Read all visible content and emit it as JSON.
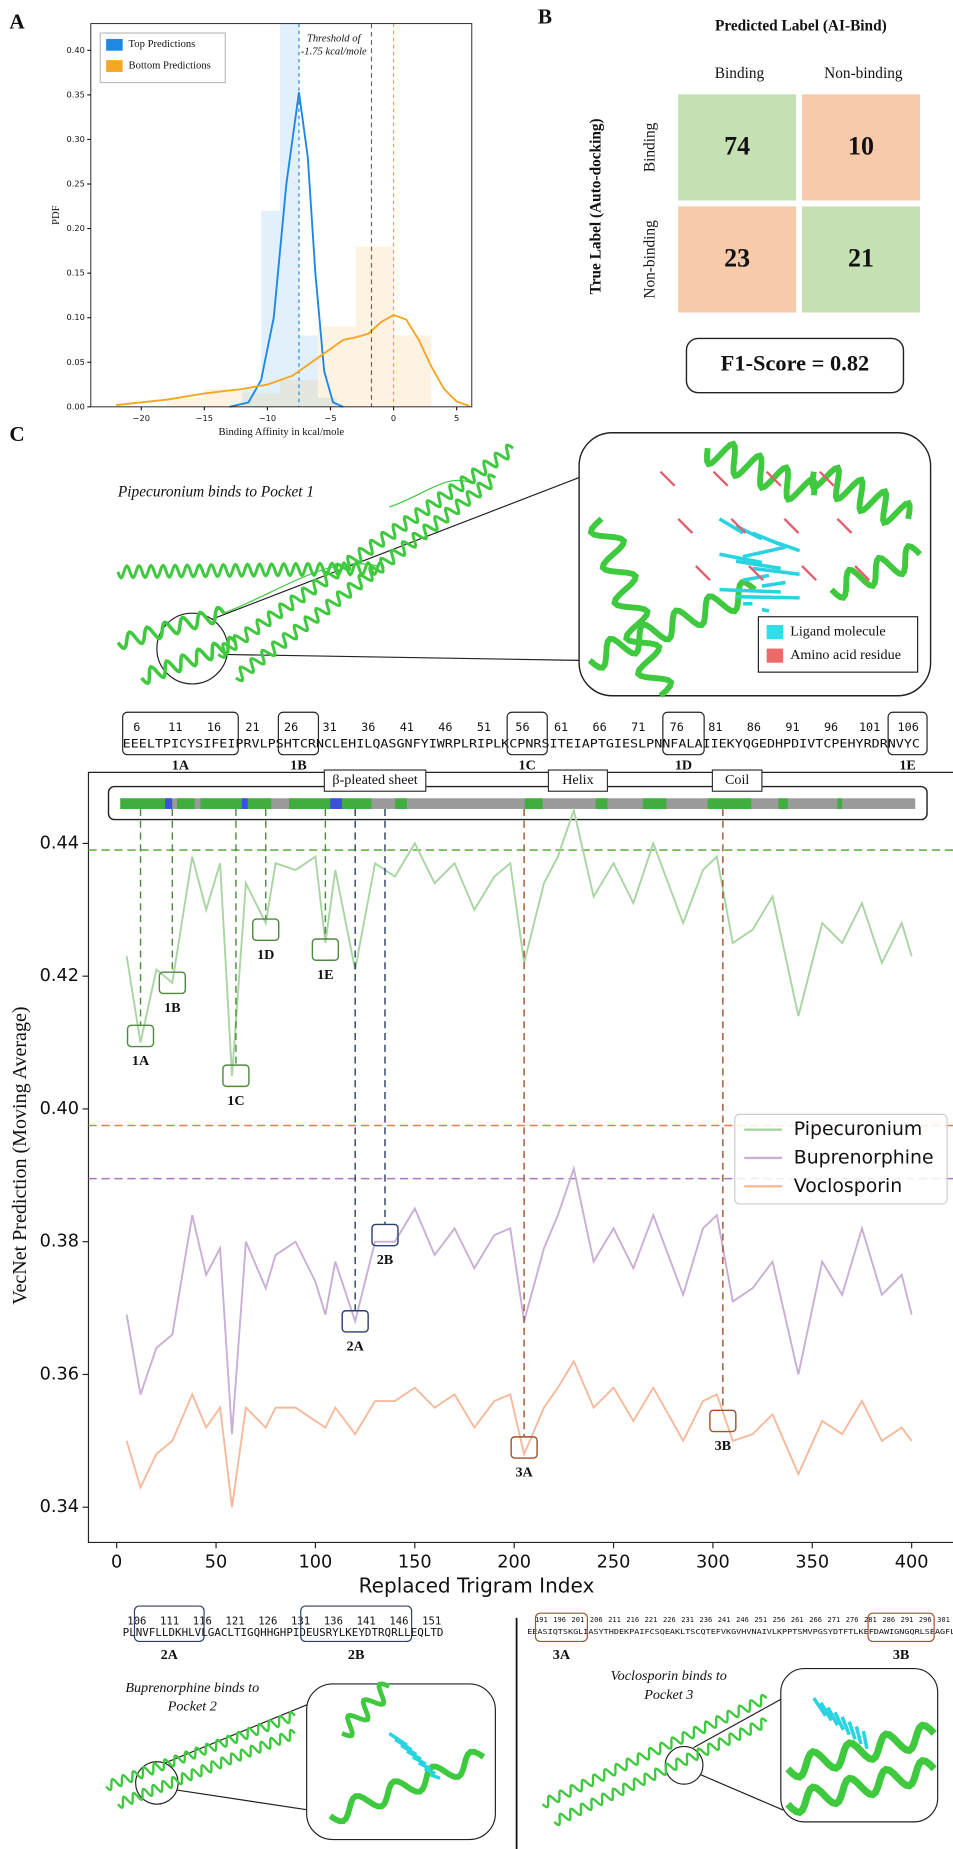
{
  "panel_labels": [
    "A",
    "B",
    "C"
  ],
  "chart_data": [
    {
      "type": "kde",
      "xlabel": "Binding Affinity in kcal/mole",
      "ylabel": "PDF",
      "xlim": [
        -24,
        6.2
      ],
      "ylim": [
        0,
        0.43
      ],
      "xticks": [
        {
          "value": -20,
          "label": "−20"
        },
        {
          "value": -15,
          "label": "−15"
        },
        {
          "value": -10,
          "label": "−10"
        },
        {
          "value": -5,
          "label": "−5"
        },
        0,
        5
      ],
      "yticks": [
        {
          "value": 0,
          "label": "0.00"
        },
        0.05,
        {
          "value": 0.1,
          "label": "0.10"
        },
        0.15,
        {
          "value": 0.2,
          "label": "0.20"
        },
        0.25,
        {
          "value": 0.3,
          "label": "0.30"
        },
        0.35,
        {
          "value": 0.4,
          "label": "0.40"
        }
      ],
      "annotation": [
        "Threshold of",
        "-1.75 kcal/mole"
      ],
      "threshold": -1.75,
      "legend": "upper left",
      "series": [
        {
          "name": "Top Predictions",
          "color": "#1e88e5",
          "mean": -7.5,
          "bins": [
            -12,
            -10.5,
            -9,
            -7.5,
            -6,
            -4.5
          ],
          "values": [
            0.02,
            0.22,
            0.43,
            0.08,
            0.01
          ],
          "kde_x": [
            -13,
            -11.5,
            -10.5,
            -9.5,
            -8.5,
            -7.5,
            -6.8,
            -6.2,
            -5.5,
            -4.8,
            -4
          ],
          "kde_y": [
            0,
            0.005,
            0.03,
            0.1,
            0.25,
            0.353,
            0.28,
            0.15,
            0.04,
            0.005,
            0
          ]
        },
        {
          "name": "Bottom Predictions",
          "color": "#f5a623",
          "mean": 0,
          "bins": [
            -18,
            -15,
            -12,
            -9,
            -6,
            -3,
            0,
            3
          ],
          "values": [
            0.01,
            0.02,
            0.015,
            0.03,
            0.09,
            0.18,
            0.08
          ],
          "kde_x": [
            -22,
            -18,
            -15,
            -12,
            -10,
            -8,
            -6,
            -4,
            -3,
            -2,
            -1,
            0,
            1,
            2,
            3,
            4,
            5,
            6
          ],
          "kde_y": [
            0.002,
            0.008,
            0.015,
            0.02,
            0.025,
            0.035,
            0.055,
            0.075,
            0.078,
            0.082,
            0.095,
            0.103,
            0.098,
            0.075,
            0.045,
            0.02,
            0.006,
            0.001
          ]
        }
      ]
    },
    {
      "type": "heatmap",
      "title": "Predicted Label (AI-Bind)",
      "ylabel": "True Label (Auto-docking)",
      "columns": [
        "Binding",
        "Non-binding"
      ],
      "rows": [
        "Binding",
        "Non-binding"
      ],
      "values": [
        [
          74,
          10
        ],
        [
          23,
          21
        ]
      ],
      "cell_colors": [
        [
          "#c5e0b3",
          "#f7caac"
        ],
        [
          "#f7caac",
          "#c5e0b3"
        ]
      ],
      "score": "F1-Score = 0.82"
    },
    {
      "type": "line",
      "xlabel": "Replaced Trigram Index",
      "ylabel": "VecNet Prediction (Moving Average)",
      "xlim": [
        -14.2,
        420.8
      ],
      "ylim": [
        0.3347,
        0.4507
      ],
      "xticks": [
        0,
        50,
        100,
        150,
        200,
        250,
        300,
        350,
        400
      ],
      "yticks": [
        0.34,
        0.36,
        0.38,
        {
          "value": 0.4,
          "label": "0.40"
        },
        0.42,
        0.44
      ],
      "legend": "center right",
      "structure_labels": [
        {
          "label": "β-pleated sheet",
          "color": "#3344cc"
        },
        {
          "label": "Helix",
          "color": "#888888"
        },
        {
          "label": "Coil",
          "color": "#3a9a3a"
        }
      ],
      "x": [
        5,
        12,
        20,
        28,
        38,
        45,
        52,
        58,
        65,
        75,
        80,
        90,
        100,
        105,
        110,
        120,
        130,
        140,
        150,
        160,
        170,
        180,
        190,
        198,
        205,
        215,
        222,
        230,
        240,
        250,
        260,
        270,
        285,
        295,
        302,
        310,
        320,
        330,
        343,
        355,
        365,
        375,
        385,
        395,
        400
      ],
      "series": [
        {
          "name": "Pipecuronium",
          "color": "#a8d5a2",
          "threshold": 0.439,
          "threshold_color": "#6ab04c",
          "values": [
            0.423,
            0.41,
            0.421,
            0.419,
            0.438,
            0.43,
            0.437,
            0.405,
            0.434,
            0.428,
            0.437,
            0.436,
            0.438,
            0.425,
            0.436,
            0.421,
            0.437,
            0.435,
            0.44,
            0.434,
            0.437,
            0.43,
            0.435,
            0.437,
            0.422,
            0.434,
            0.438,
            0.445,
            0.432,
            0.437,
            0.431,
            0.44,
            0.428,
            0.436,
            0.438,
            0.425,
            0.427,
            0.432,
            0.414,
            0.428,
            0.425,
            0.431,
            0.422,
            0.428,
            0.423
          ]
        },
        {
          "name": "Buprenorphine",
          "color": "#c9aed6",
          "threshold": 0.3895,
          "threshold_color": "#a775c9",
          "values": [
            0.369,
            0.357,
            0.364,
            0.366,
            0.384,
            0.375,
            0.379,
            0.351,
            0.38,
            0.373,
            0.378,
            0.38,
            0.374,
            0.369,
            0.377,
            0.368,
            0.38,
            0.38,
            0.385,
            0.378,
            0.382,
            0.376,
            0.381,
            0.382,
            0.368,
            0.379,
            0.384,
            0.391,
            0.377,
            0.382,
            0.376,
            0.384,
            0.372,
            0.382,
            0.384,
            0.371,
            0.373,
            0.377,
            0.36,
            0.377,
            0.372,
            0.382,
            0.372,
            0.375,
            0.369
          ]
        },
        {
          "name": "Voclosporin",
          "color": "#f6b99b",
          "threshold": 0.3975,
          "threshold_color": "#f07b4a",
          "values": [
            0.35,
            0.343,
            0.348,
            0.35,
            0.357,
            0.352,
            0.355,
            0.34,
            0.355,
            0.352,
            0.355,
            0.355,
            0.353,
            0.352,
            0.355,
            0.351,
            0.356,
            0.356,
            0.358,
            0.355,
            0.357,
            0.352,
            0.356,
            0.357,
            0.348,
            0.355,
            0.358,
            0.362,
            0.355,
            0.358,
            0.353,
            0.358,
            0.35,
            0.356,
            0.357,
            0.35,
            0.351,
            0.354,
            0.345,
            0.353,
            0.351,
            0.356,
            0.35,
            0.352,
            0.35
          ]
        }
      ],
      "annotations": [
        {
          "label": "1A",
          "x": 12,
          "y": 0.411,
          "color": "#4e8a3e"
        },
        {
          "label": "1B",
          "x": 28,
          "y": 0.419,
          "color": "#4e8a3e"
        },
        {
          "label": "1C",
          "x": 60,
          "y": 0.405,
          "color": "#4e8a3e"
        },
        {
          "label": "1D",
          "x": 75,
          "y": 0.427,
          "color": "#4e8a3e"
        },
        {
          "label": "1E",
          "x": 105,
          "y": 0.424,
          "color": "#4e8a3e"
        },
        {
          "label": "2A",
          "x": 120,
          "y": 0.368,
          "color": "#2b3f6b"
        },
        {
          "label": "2B",
          "x": 135,
          "y": 0.381,
          "color": "#2b3f6b"
        },
        {
          "label": "3A",
          "x": 205,
          "y": 0.349,
          "color": "#a0522d"
        },
        {
          "label": "3B",
          "x": 305,
          "y": 0.353,
          "color": "#a0522d"
        }
      ]
    }
  ],
  "pocket1": {
    "caption": "Pipecuronium binds to Pocket 1",
    "legend": [
      "Ligand molecule",
      "Amino acid residue"
    ],
    "numbers": [
      6,
      11,
      16,
      21,
      26,
      31,
      36,
      41,
      46,
      51,
      56,
      61,
      66,
      71,
      76,
      81,
      86,
      91,
      96,
      101,
      106
    ],
    "sequence": "EEELTPICYSIFEIPRVLPSHTCRNCLEHILQASGNFYIWRPLRIPLKCPNRSITEIAPTGIESLPNNFALAIIEKYQGEDHPDIVTCPEHYRDRNVYC",
    "pockets": [
      "1A",
      "1B",
      "1C",
      "1D",
      "1E"
    ]
  },
  "pocket2": {
    "caption": [
      "Buprenorphine binds to",
      "Pocket 2"
    ],
    "numbers": [
      106,
      111,
      116,
      121,
      126,
      131,
      136,
      141,
      146,
      151
    ],
    "sequence": "PLNVFLLDKHLVLGACLTIGQHHGHPIDEUSRYLKEYDTRQRLLEQLTD",
    "pockets": [
      "2A",
      "2B"
    ]
  },
  "pocket3": {
    "caption": [
      "Voclosporin binds to",
      "Pocket 3"
    ],
    "numbers": [
      191,
      196,
      201,
      206,
      211,
      216,
      221,
      226,
      231,
      236,
      241,
      246,
      251,
      256,
      261,
      266,
      271,
      276,
      281,
      286,
      291,
      296,
      301
    ],
    "sequence": "EEASIQTSKGLIASYTHDEKPAIFCSQEAKLTSCQTEFVKGVHVNAIVLKPPTSMVPGSYDTFTLKEFDAWIGNGQRLSEAGFL",
    "pockets": [
      "3A",
      "3B"
    ]
  }
}
